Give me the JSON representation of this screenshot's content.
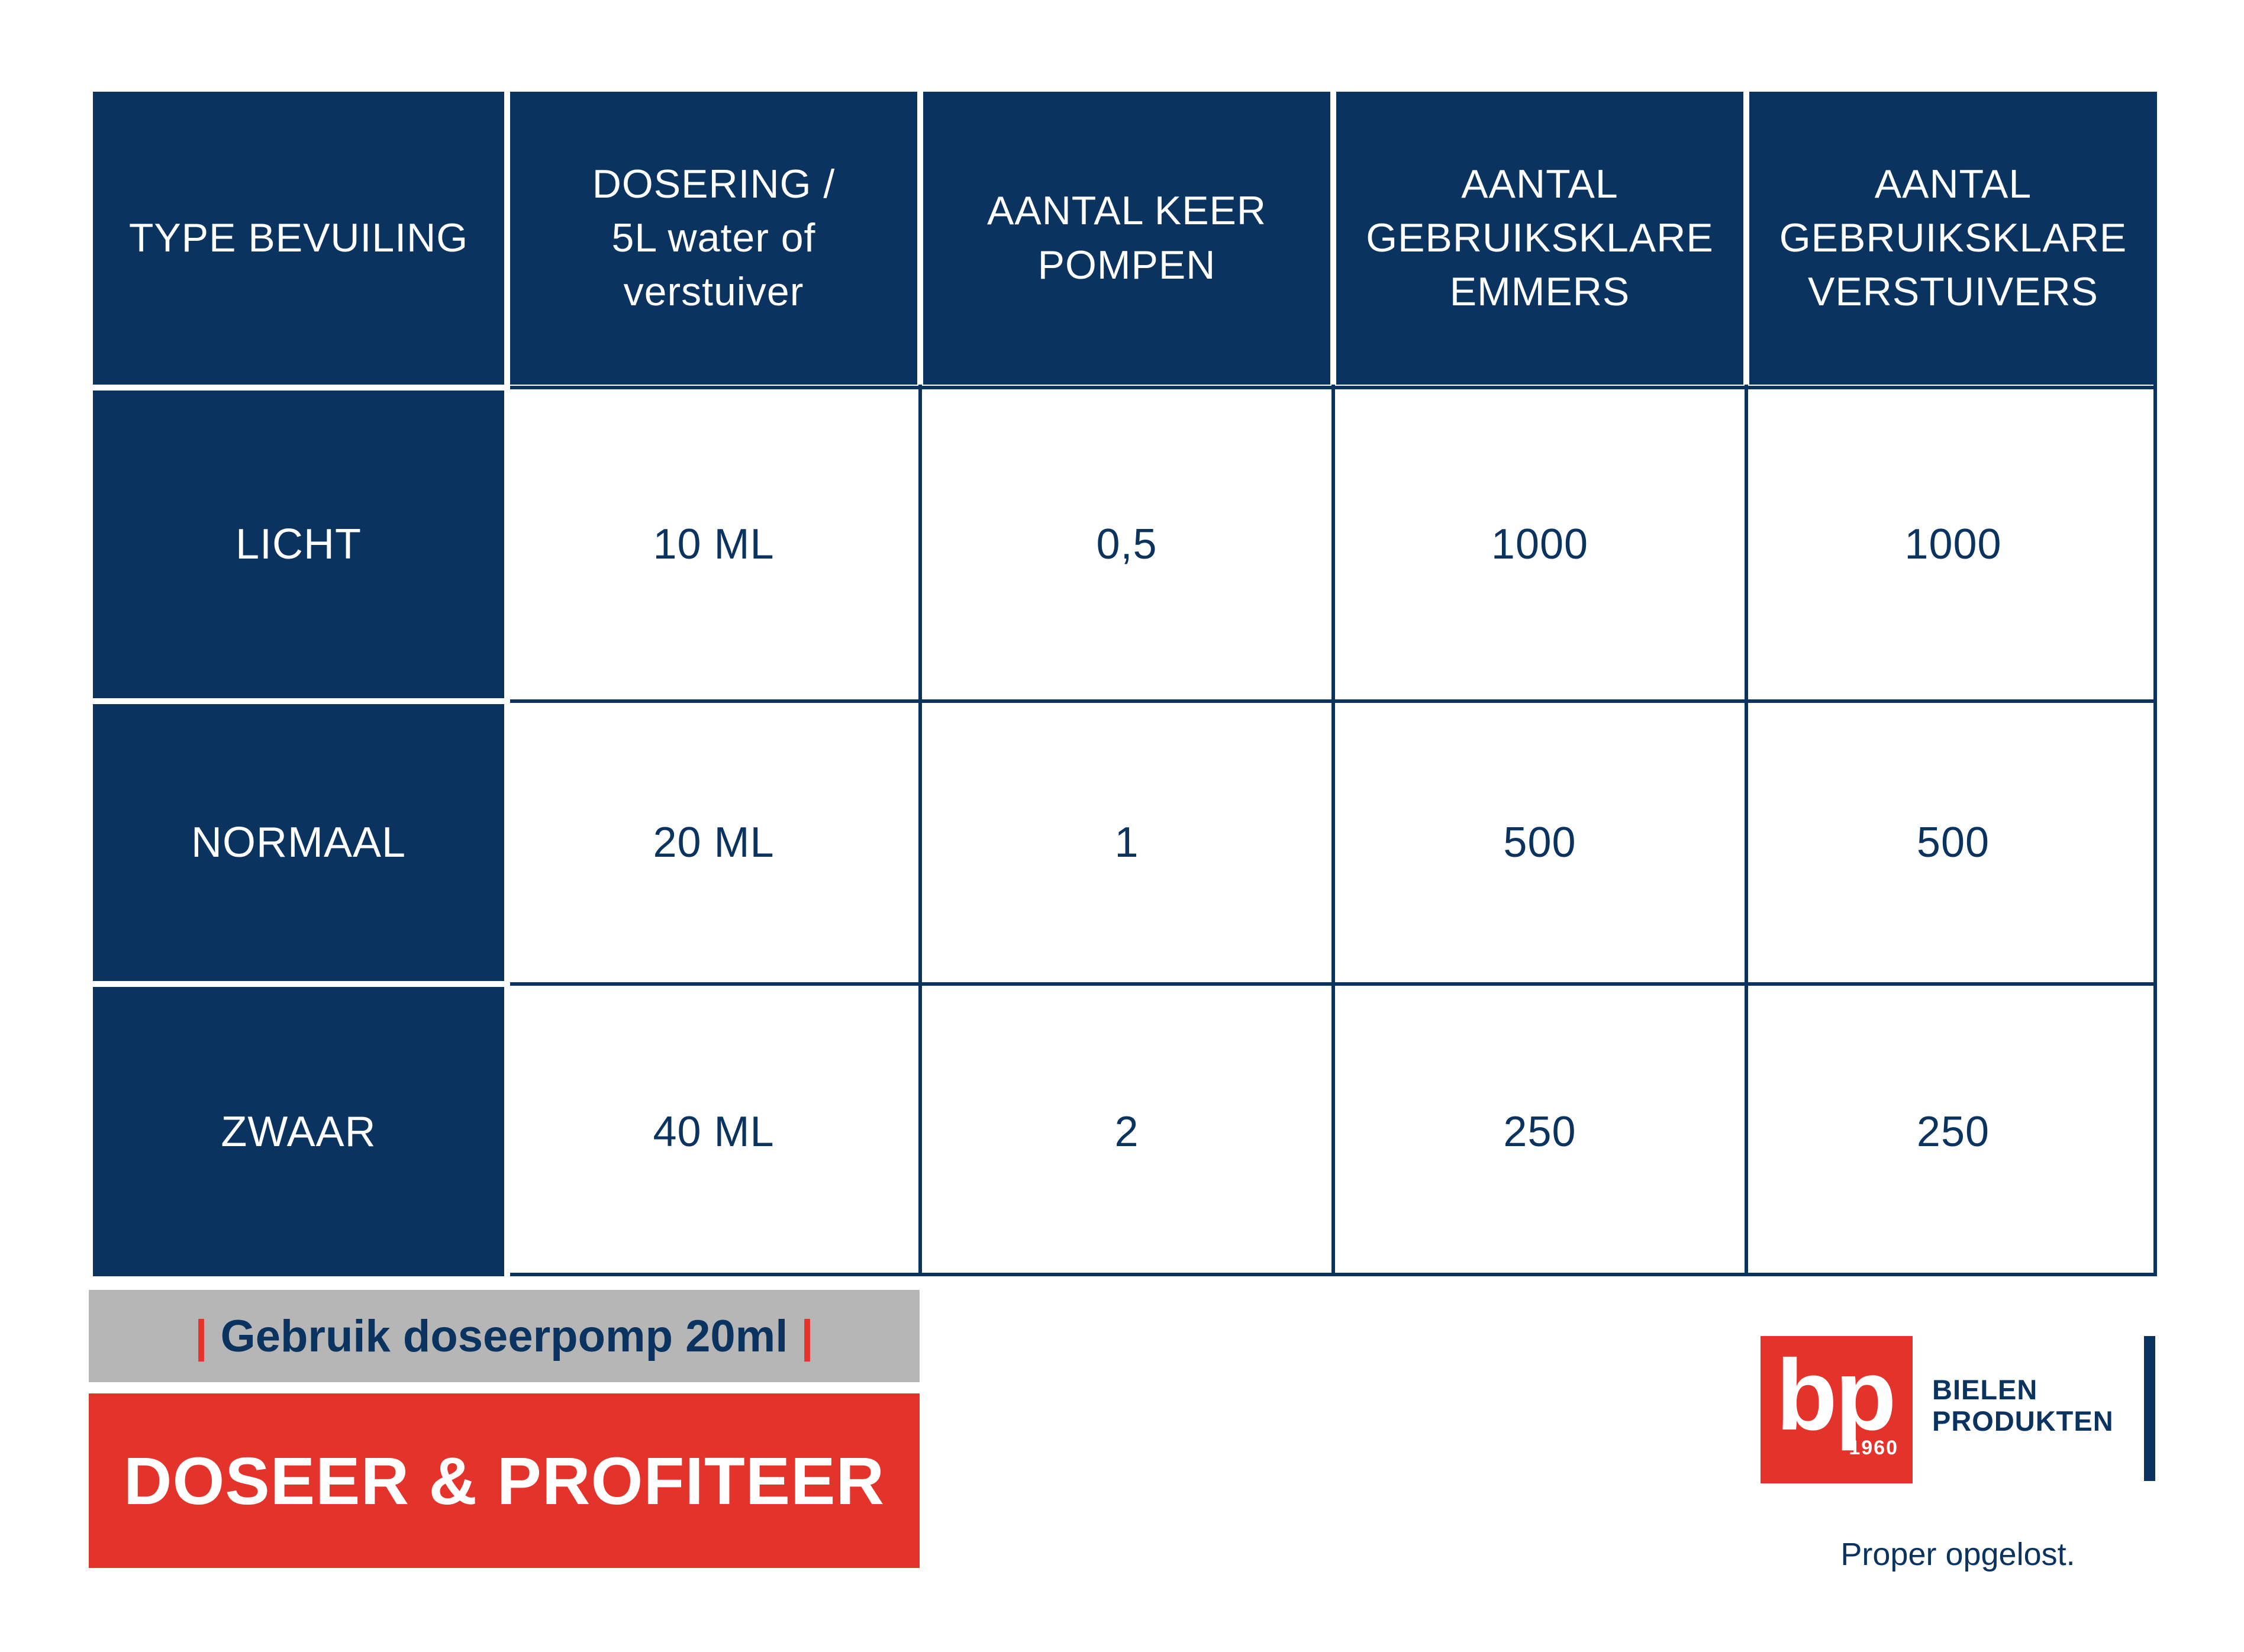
{
  "colors": {
    "navy": "#0a3360",
    "red": "#e4332b",
    "gray": "#b6b6b6",
    "white": "#ffffff"
  },
  "table": {
    "headers": [
      {
        "label": "TYPE BEVUILING"
      },
      {
        "label": "DOSERING /\n5L water of\nverstuiver"
      },
      {
        "label": "AANTAL KEER\nPOMPEN"
      },
      {
        "label": "AANTAL\nGEBRUIKSKLARE\nEMMERS"
      },
      {
        "label": "AANTAL\nGEBRUIKSKLARE\nVERSTUIVERS"
      }
    ],
    "rows": [
      {
        "label": "LICHT",
        "values": [
          "10 ML",
          "0,5",
          "1000",
          "1000"
        ]
      },
      {
        "label": "NORMAAL",
        "values": [
          "20 ML",
          "1",
          "500",
          "500"
        ]
      },
      {
        "label": "ZWAAR",
        "values": [
          "40 ML",
          "2",
          "250",
          "250"
        ]
      }
    ]
  },
  "banners": {
    "pump_note": {
      "bar_left": "|",
      "text": "Gebruik doseerpomp 20ml",
      "bar_right": "|"
    },
    "slogan": "DOSEER & PROFITEER"
  },
  "logo": {
    "monogram": "bp",
    "year": "1960",
    "name_line1": "BIELEN",
    "name_line2": "PRODUKTEN",
    "tagline": "Proper opgelost."
  }
}
